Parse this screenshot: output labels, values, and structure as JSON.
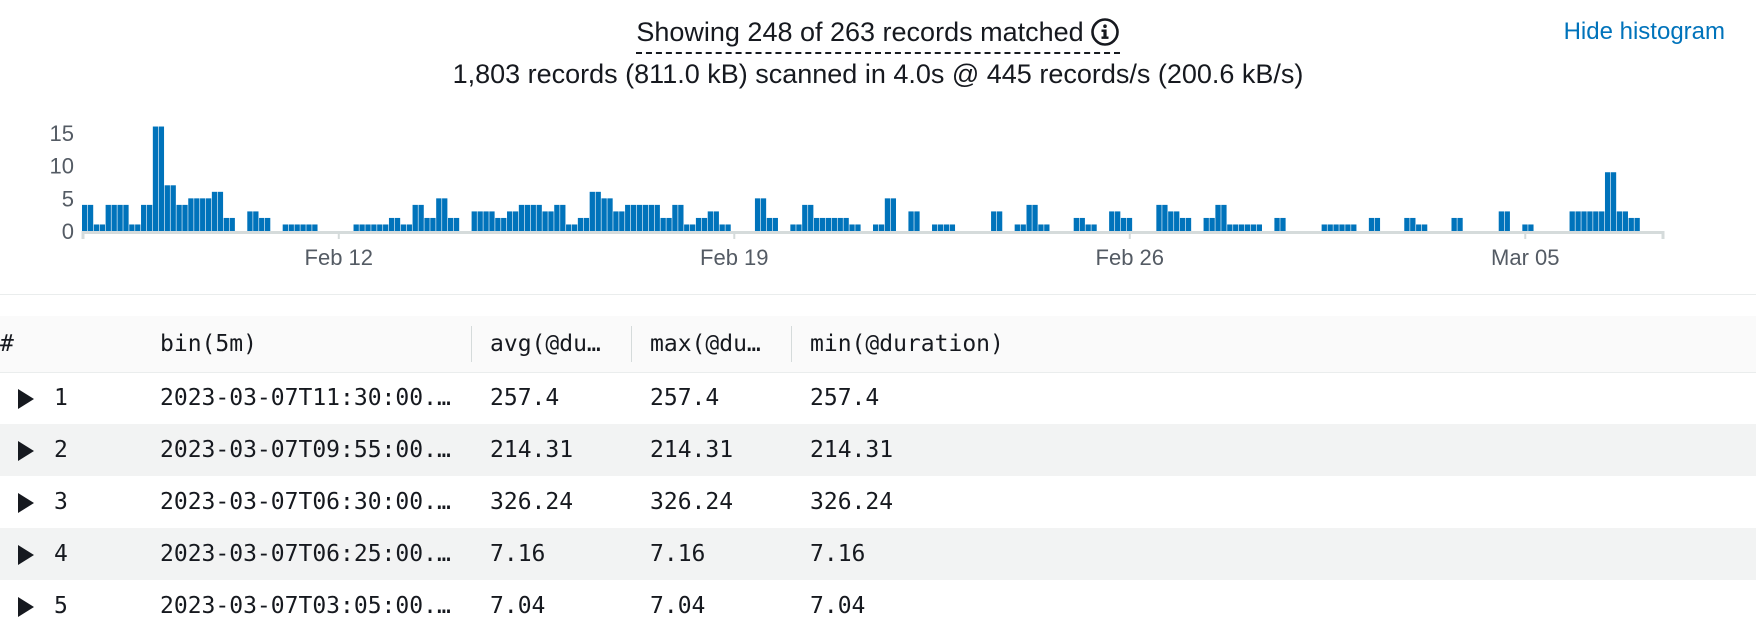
{
  "summary": {
    "line1": "Showing 248 of 263 records matched",
    "line2": "1,803 records (811.0 kB) scanned in 4.0s @ 445 records/s (200.6 kB/s)"
  },
  "hide_histogram_label": "Hide histogram",
  "colors": {
    "bar": "#0073bb",
    "link": "#0073bb"
  },
  "chart_data": {
    "type": "bar",
    "ylim": [
      0,
      17
    ],
    "y_ticks": [
      "15",
      "10",
      "5",
      "0"
    ],
    "y_tick_values": [
      15,
      10,
      5,
      0
    ],
    "x_tick_labels": [
      "Feb 12",
      "Feb 19",
      "Feb 26",
      "Mar 05"
    ],
    "x_tick_bins": [
      43.5,
      110.5,
      177.5,
      244.5
    ],
    "n_bins": 268,
    "bins": [
      [
        0,
        4
      ],
      [
        1,
        4
      ],
      [
        2,
        1
      ],
      [
        3,
        1
      ],
      [
        4,
        4
      ],
      [
        5,
        4
      ],
      [
        6,
        4
      ],
      [
        7,
        4
      ],
      [
        8,
        1
      ],
      [
        9,
        1
      ],
      [
        10,
        4
      ],
      [
        11,
        4
      ],
      [
        12,
        16
      ],
      [
        13,
        16
      ],
      [
        14,
        7
      ],
      [
        15,
        7
      ],
      [
        16,
        4
      ],
      [
        17,
        4
      ],
      [
        18,
        5
      ],
      [
        19,
        5
      ],
      [
        20,
        5
      ],
      [
        21,
        5
      ],
      [
        22,
        6
      ],
      [
        23,
        6
      ],
      [
        24,
        2
      ],
      [
        25,
        2
      ],
      [
        28,
        3
      ],
      [
        29,
        3
      ],
      [
        30,
        2
      ],
      [
        31,
        2
      ],
      [
        34,
        1
      ],
      [
        35,
        1
      ],
      [
        36,
        1
      ],
      [
        37,
        1
      ],
      [
        38,
        1
      ],
      [
        39,
        1
      ],
      [
        46,
        1
      ],
      [
        47,
        1
      ],
      [
        48,
        1
      ],
      [
        49,
        1
      ],
      [
        50,
        1
      ],
      [
        51,
        1
      ],
      [
        52,
        2
      ],
      [
        53,
        2
      ],
      [
        54,
        1
      ],
      [
        55,
        1
      ],
      [
        56,
        4
      ],
      [
        57,
        4
      ],
      [
        58,
        2
      ],
      [
        59,
        2
      ],
      [
        60,
        5
      ],
      [
        61,
        5
      ],
      [
        62,
        2
      ],
      [
        63,
        2
      ],
      [
        66,
        3
      ],
      [
        67,
        3
      ],
      [
        68,
        3
      ],
      [
        69,
        3
      ],
      [
        70,
        2
      ],
      [
        71,
        2
      ],
      [
        72,
        3
      ],
      [
        73,
        3
      ],
      [
        74,
        4
      ],
      [
        75,
        4
      ],
      [
        76,
        4
      ],
      [
        77,
        4
      ],
      [
        78,
        3
      ],
      [
        79,
        3
      ],
      [
        80,
        4
      ],
      [
        81,
        4
      ],
      [
        82,
        1
      ],
      [
        83,
        1
      ],
      [
        84,
        2
      ],
      [
        85,
        2
      ],
      [
        86,
        6
      ],
      [
        87,
        6
      ],
      [
        88,
        5
      ],
      [
        89,
        5
      ],
      [
        90,
        3
      ],
      [
        91,
        3
      ],
      [
        92,
        4
      ],
      [
        93,
        4
      ],
      [
        94,
        4
      ],
      [
        95,
        4
      ],
      [
        96,
        4
      ],
      [
        97,
        4
      ],
      [
        98,
        2
      ],
      [
        99,
        2
      ],
      [
        100,
        4
      ],
      [
        101,
        4
      ],
      [
        102,
        1
      ],
      [
        103,
        1
      ],
      [
        104,
        2
      ],
      [
        105,
        2
      ],
      [
        106,
        3
      ],
      [
        107,
        3
      ],
      [
        108,
        1
      ],
      [
        109,
        1
      ],
      [
        114,
        5
      ],
      [
        115,
        5
      ],
      [
        116,
        2
      ],
      [
        117,
        2
      ],
      [
        120,
        1
      ],
      [
        121,
        1
      ],
      [
        122,
        4
      ],
      [
        123,
        4
      ],
      [
        124,
        2
      ],
      [
        125,
        2
      ],
      [
        126,
        2
      ],
      [
        127,
        2
      ],
      [
        128,
        2
      ],
      [
        129,
        2
      ],
      [
        130,
        1
      ],
      [
        131,
        1
      ],
      [
        134,
        1
      ],
      [
        135,
        1
      ],
      [
        136,
        5
      ],
      [
        137,
        5
      ],
      [
        140,
        3
      ],
      [
        141,
        3
      ],
      [
        144,
        1
      ],
      [
        145,
        1
      ],
      [
        146,
        1
      ],
      [
        147,
        1
      ],
      [
        154,
        3
      ],
      [
        155,
        3
      ],
      [
        158,
        1
      ],
      [
        159,
        1
      ],
      [
        160,
        4
      ],
      [
        161,
        4
      ],
      [
        162,
        1
      ],
      [
        163,
        1
      ],
      [
        168,
        2
      ],
      [
        169,
        2
      ],
      [
        170,
        1
      ],
      [
        171,
        1
      ],
      [
        174,
        3
      ],
      [
        175,
        3
      ],
      [
        176,
        2
      ],
      [
        177,
        2
      ],
      [
        182,
        4
      ],
      [
        183,
        4
      ],
      [
        184,
        3
      ],
      [
        185,
        3
      ],
      [
        186,
        2
      ],
      [
        187,
        2
      ],
      [
        190,
        2
      ],
      [
        191,
        2
      ],
      [
        192,
        4
      ],
      [
        193,
        4
      ],
      [
        194,
        1
      ],
      [
        195,
        1
      ],
      [
        196,
        1
      ],
      [
        197,
        1
      ],
      [
        198,
        1
      ],
      [
        199,
        1
      ],
      [
        202,
        2
      ],
      [
        203,
        2
      ],
      [
        210,
        1
      ],
      [
        211,
        1
      ],
      [
        212,
        1
      ],
      [
        213,
        1
      ],
      [
        214,
        1
      ],
      [
        215,
        1
      ],
      [
        218,
        2
      ],
      [
        219,
        2
      ],
      [
        224,
        2
      ],
      [
        225,
        2
      ],
      [
        226,
        1
      ],
      [
        227,
        1
      ],
      [
        232,
        2
      ],
      [
        233,
        2
      ],
      [
        240,
        3
      ],
      [
        241,
        3
      ],
      [
        244,
        1
      ],
      [
        245,
        1
      ],
      [
        252,
        3
      ],
      [
        253,
        3
      ],
      [
        254,
        3
      ],
      [
        255,
        3
      ],
      [
        256,
        3
      ],
      [
        257,
        3
      ],
      [
        258,
        9
      ],
      [
        259,
        9
      ],
      [
        260,
        3
      ],
      [
        261,
        3
      ],
      [
        262,
        2
      ],
      [
        263,
        2
      ],
      [
        264,
        0
      ],
      [
        265,
        0
      ]
    ]
  },
  "table": {
    "columns": [
      "#",
      "bin(5m)",
      "avg(@du…",
      "max(@du…",
      "min(@duration)"
    ],
    "rows": [
      {
        "n": "1",
        "bin": "2023-03-07T11:30:00.…",
        "avg": "257.4",
        "max": "257.4",
        "min": "257.4"
      },
      {
        "n": "2",
        "bin": "2023-03-07T09:55:00.…",
        "avg": "214.31",
        "max": "214.31",
        "min": "214.31"
      },
      {
        "n": "3",
        "bin": "2023-03-07T06:30:00.…",
        "avg": "326.24",
        "max": "326.24",
        "min": "326.24"
      },
      {
        "n": "4",
        "bin": "2023-03-07T06:25:00.…",
        "avg": "7.16",
        "max": "7.16",
        "min": "7.16"
      },
      {
        "n": "5",
        "bin": "2023-03-07T03:05:00.…",
        "avg": "7.04",
        "max": "7.04",
        "min": "7.04"
      }
    ]
  }
}
